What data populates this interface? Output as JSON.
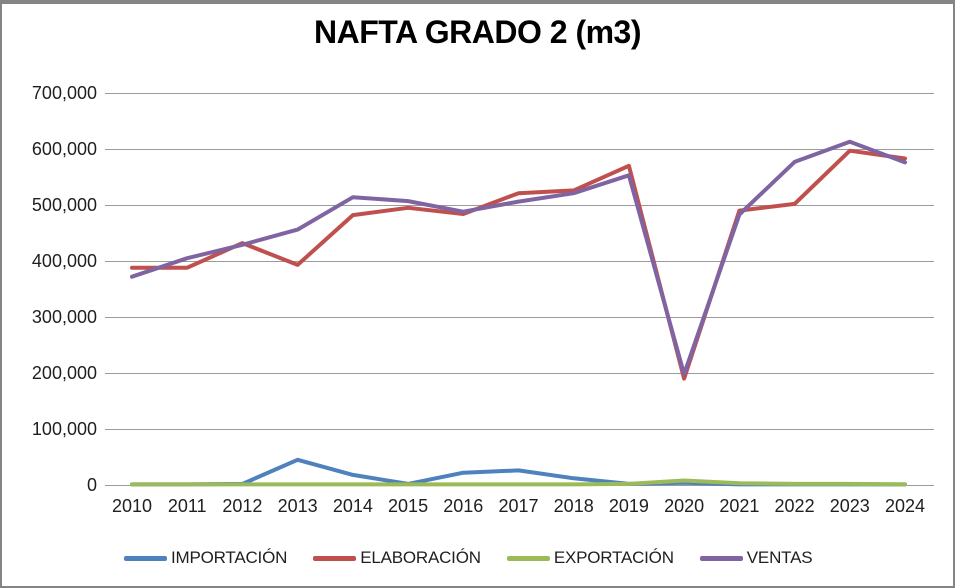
{
  "chart_data": {
    "type": "line",
    "title": "NAFTA GRADO 2 (m3)",
    "categories": [
      "2010",
      "2011",
      "2012",
      "2013",
      "2014",
      "2015",
      "2016",
      "2017",
      "2018",
      "2019",
      "2020",
      "2021",
      "2022",
      "2023",
      "2024"
    ],
    "series": [
      {
        "name": "IMPORTACIÓN",
        "color": "#4F81BD",
        "values": [
          1000,
          1000,
          2000,
          45000,
          18000,
          2000,
          22000,
          26000,
          12000,
          2000,
          4000,
          1000,
          1000,
          1000,
          1000
        ]
      },
      {
        "name": "ELABORACIÓN",
        "color": "#C0504D",
        "values": [
          388000,
          388000,
          432000,
          393000,
          482000,
          495000,
          484000,
          521000,
          526000,
          570000,
          190000,
          490000,
          502000,
          597000,
          583000
        ]
      },
      {
        "name": "EXPORTACIÓN",
        "color": "#9BBB59",
        "values": [
          1000,
          1000,
          1000,
          1000,
          1000,
          1000,
          1000,
          1000,
          1000,
          2000,
          8000,
          3000,
          2000,
          2000,
          1000
        ]
      },
      {
        "name": "VENTAS",
        "color": "#8064A2",
        "values": [
          372000,
          405000,
          429000,
          456000,
          514000,
          507000,
          488000,
          506000,
          521000,
          553000,
          198000,
          483000,
          577000,
          613000,
          576000
        ]
      }
    ],
    "xlabel": "",
    "ylabel": "",
    "ylim": [
      0,
      700000
    ],
    "y_ticks": [
      0,
      100000,
      200000,
      300000,
      400000,
      500000,
      600000,
      700000
    ],
    "y_tick_labels": [
      "0",
      "100,000",
      "200,000",
      "300,000",
      "400,000",
      "500,000",
      "600,000",
      "700,000"
    ],
    "grid": true,
    "legend_position": "bottom",
    "gridline_color": "#9b9b9b",
    "border_color": "#848484",
    "background": "#ffffff",
    "line_width": 4
  }
}
